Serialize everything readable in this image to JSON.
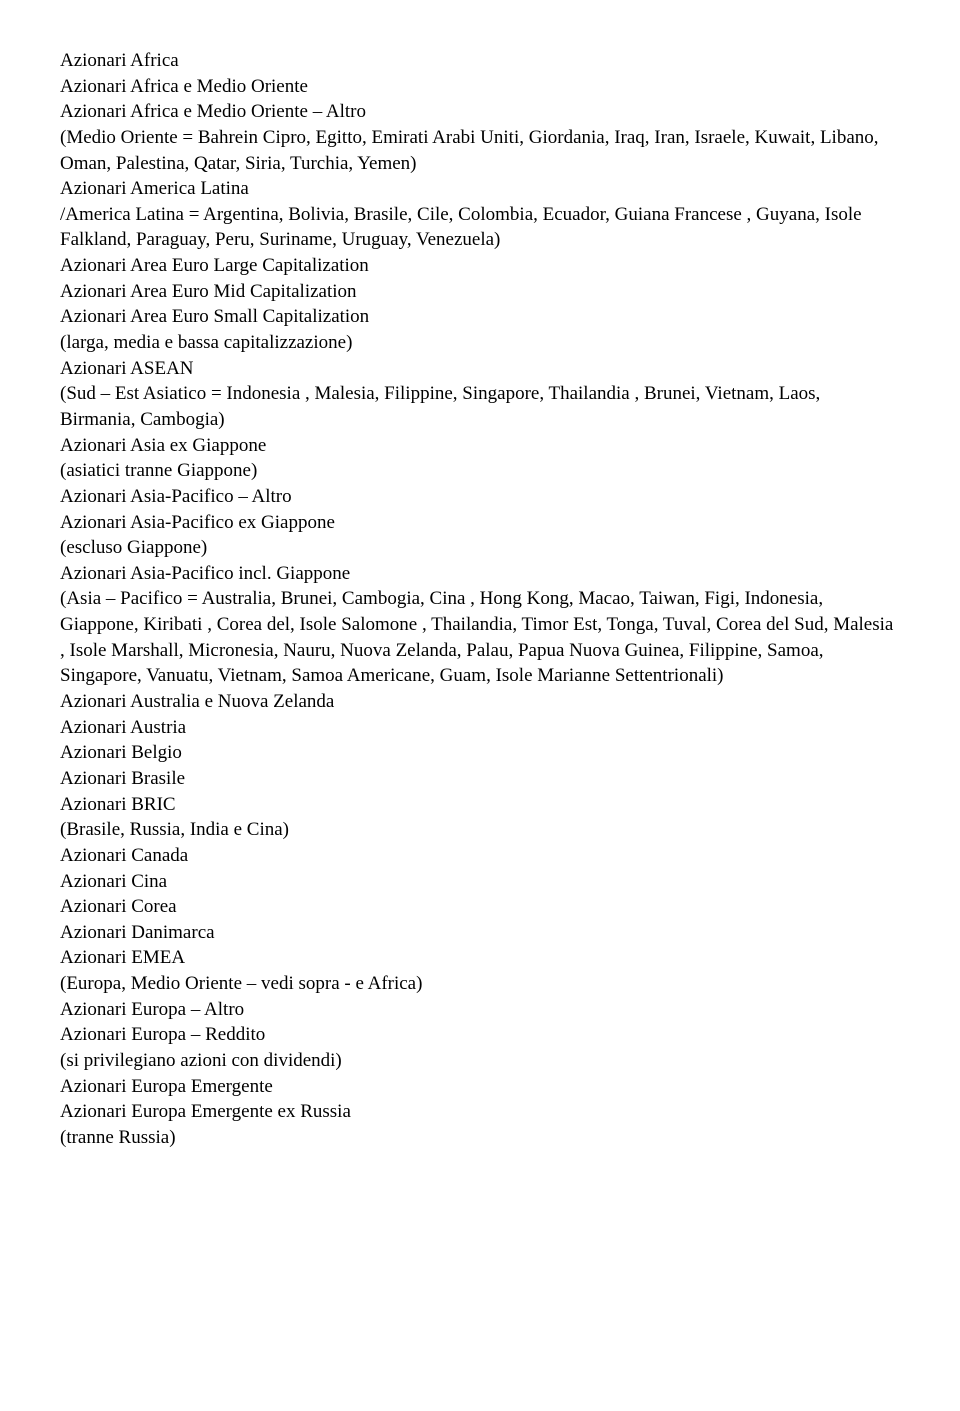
{
  "lines": [
    "Azionari Africa",
    "Azionari Africa e Medio Oriente",
    "Azionari Africa e Medio Oriente – Altro",
    "(Medio Oriente = Bahrein Cipro, Egitto, Emirati Arabi Uniti, Giordania, Iraq, Iran, Israele, Kuwait, Libano, Oman, Palestina, Qatar, Siria, Turchia, Yemen)",
    "Azionari America Latina",
    "/America Latina = Argentina, Bolivia, Brasile, Cile, Colombia, Ecuador, Guiana Francese , Guyana, Isole Falkland, Paraguay, Peru, Suriname, Uruguay, Venezuela)",
    "Azionari Area Euro Large Capitalization",
    "Azionari Area Euro Mid Capitalization",
    "Azionari Area Euro Small Capitalization",
    "(larga, media e bassa capitalizzazione)",
    "Azionari ASEAN",
    " (Sud – Est Asiatico = Indonesia , Malesia,  Filippine, Singapore, Thailandia , Brunei, Vietnam, Laos, Birmania, Cambogia)",
    "Azionari Asia ex Giappone",
    "(asiatici tranne Giappone)",
    "Azionari Asia-Pacifico – Altro",
    "Azionari Asia-Pacifico ex Giappone",
    "(escluso Giappone)",
    "Azionari Asia-Pacifico incl. Giappone",
    "(Asia – Pacifico =  Australia, Brunei, Cambogia, Cina ,  Hong Kong, Macao, Taiwan, Figi, Indonesia, Giappone, Kiribati , Corea del, Isole Salomone , Thailandia, Timor Est, Tonga, Tuval, Corea del Sud, Malesia , Isole Marshall,  Micronesia, Nauru, Nuova Zelanda, Palau, Papua Nuova Guinea, Filippine, Samoa, Singapore, Vanuatu, Vietnam, Samoa Americane, Guam, Isole Marianne Settentrionali)",
    "Azionari Australia e Nuova Zelanda",
    "Azionari Austria",
    "Azionari Belgio",
    "Azionari Brasile",
    "Azionari BRIC",
    "(Brasile, Russia, India e Cina)",
    "Azionari Canada",
    "Azionari Cina",
    "Azionari Corea",
    "Azionari Danimarca",
    "Azionari EMEA",
    "(Europa, Medio Oriente – vedi sopra - e Africa)",
    "Azionari Europa – Altro",
    "Azionari Europa – Reddito",
    "(si privilegiano azioni con dividendi)",
    "Azionari Europa Emergente",
    "Azionari Europa Emergente ex Russia",
    "(tranne Russia)"
  ]
}
